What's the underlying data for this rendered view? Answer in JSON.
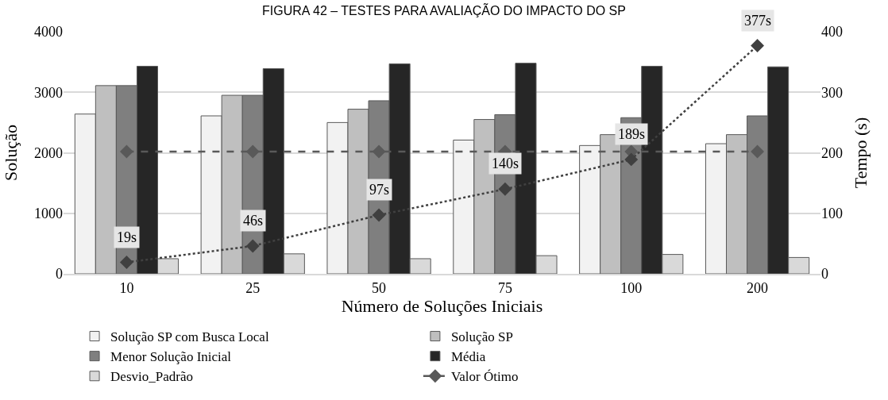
{
  "chart_data": {
    "type": "bar",
    "title": "FIGURA 42 – TESTES PARA AVALIAÇÃO DO IMPACTO DO SP",
    "xlabel": "Número de Soluções Iniciais",
    "ylabel": "Solução",
    "y2label": "Tempo (s)",
    "categories": [
      "10",
      "25",
      "50",
      "75",
      "100",
      "200"
    ],
    "series": [
      {
        "name": "Solução SP com Busca Local",
        "color": "#f2f2f2",
        "values": [
          2640,
          2610,
          2500,
          2210,
          2120,
          2150
        ]
      },
      {
        "name": "Solução SP",
        "color": "#bfbfbf",
        "values": [
          3110,
          2950,
          2720,
          2550,
          2300,
          2300
        ]
      },
      {
        "name": "Menor Solução Inicial",
        "color": "#7f7f7f",
        "values": [
          3110,
          2950,
          2860,
          2630,
          2580,
          2610
        ]
      },
      {
        "name": "Média",
        "color": "#262626",
        "values": [
          3430,
          3390,
          3470,
          3480,
          3430,
          3420
        ]
      },
      {
        "name": "Desvio_Padrão",
        "color": "#d9d9d9",
        "values": [
          250,
          330,
          250,
          300,
          320,
          270
        ]
      },
      {
        "name": "Valor Ótimo",
        "type": "line",
        "color": "#595959",
        "marker": "diamond",
        "line_style": "dashed",
        "values": [
          2020,
          2020,
          2020,
          2020,
          2020,
          2020
        ]
      },
      {
        "type": "line",
        "axis": "y2",
        "color": "#404040",
        "marker": "diamond",
        "line_style": "dotted",
        "values": [
          19,
          46,
          97,
          140,
          189,
          377
        ],
        "value_labels": [
          "19s",
          "46s",
          "97s",
          "140s",
          "189s",
          "377s"
        ]
      }
    ],
    "ylim": [
      0,
      4000
    ],
    "yticks": [
      0,
      1000,
      2000,
      3000,
      4000
    ],
    "y2lim": [
      0,
      400
    ],
    "y2ticks": [
      0,
      100,
      200,
      300,
      400
    ],
    "grid": "y",
    "legend": "bottom"
  }
}
